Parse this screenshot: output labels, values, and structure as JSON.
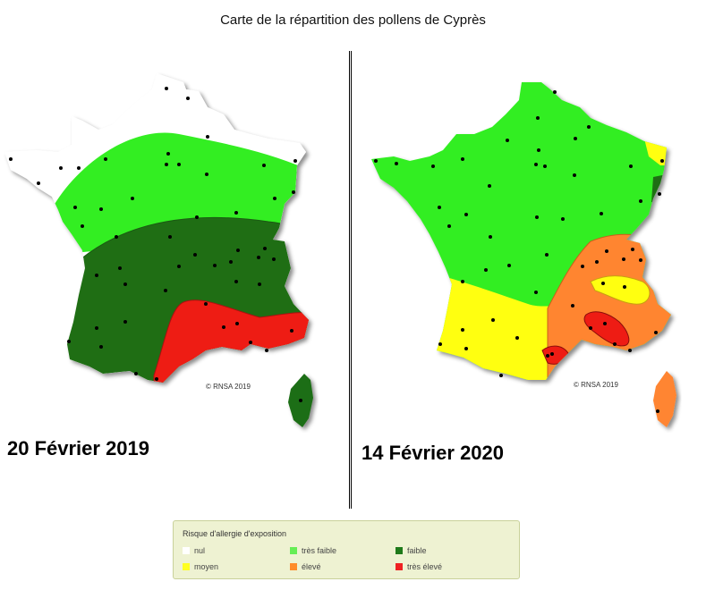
{
  "title": "Carte de la répartition des pollens de Cyprès",
  "maps": [
    {
      "date": "20 Février 2019",
      "copyright": "© RNSA 2019"
    },
    {
      "date": "14 Février 2020",
      "copyright": "© RNSA 2019"
    }
  ],
  "legend": {
    "title": "Risque d'allergie d'exposition",
    "items": [
      {
        "label": "nul",
        "color": "#ffffff"
      },
      {
        "label": "très faible",
        "color": "#66ee55"
      },
      {
        "label": "faible",
        "color": "#1f7a1a"
      },
      {
        "label": "moyen",
        "color": "#ffff22"
      },
      {
        "label": "élevé",
        "color": "#ff8c2a"
      },
      {
        "label": "très élevé",
        "color": "#ee2222"
      }
    ]
  },
  "colors": {
    "nul": "#ffffff",
    "tres_faible": "#33ee22",
    "faible": "#1f6e14",
    "moyen": "#ffff10",
    "eleve": "#ff8530",
    "tres_eleve": "#ee1c14"
  }
}
